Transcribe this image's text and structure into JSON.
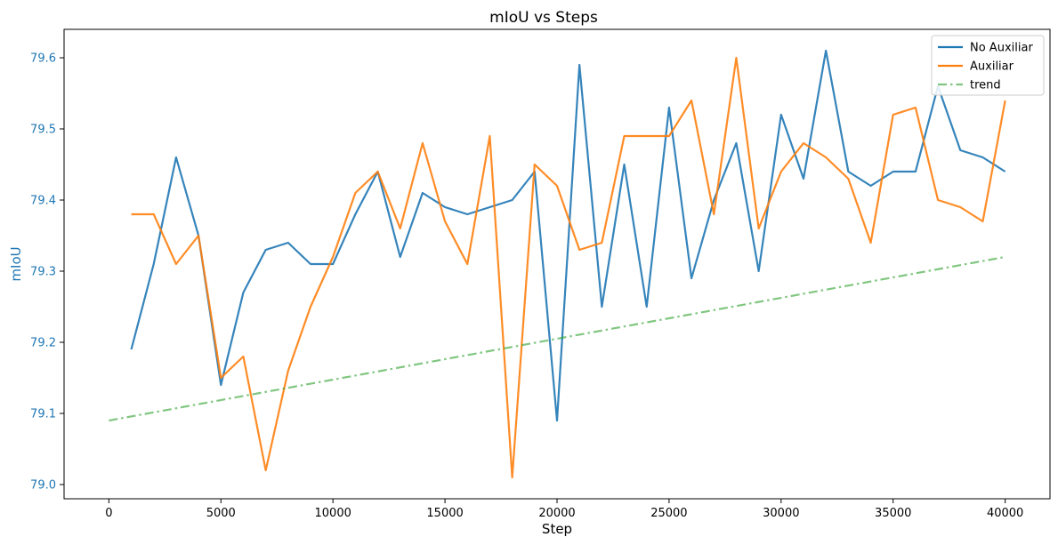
{
  "chart_data": {
    "type": "line",
    "title": "mIoU vs Steps",
    "xlabel": "Step",
    "ylabel": "mIoU",
    "xlim": [
      -2000,
      42000
    ],
    "ylim": [
      78.98,
      79.64
    ],
    "xticks": [
      0,
      5000,
      10000,
      15000,
      20000,
      25000,
      30000,
      35000,
      40000
    ],
    "yticks": [
      79.0,
      79.1,
      79.2,
      79.3,
      79.4,
      79.5,
      79.6
    ],
    "ytick_color": "#1f77b4",
    "ylabel_color": "#1f77b4",
    "grid": false,
    "legend_position": "top-right",
    "x": [
      1000,
      2000,
      3000,
      4000,
      5000,
      6000,
      7000,
      8000,
      9000,
      10000,
      11000,
      12000,
      13000,
      14000,
      15000,
      16000,
      17000,
      18000,
      19000,
      20000,
      21000,
      22000,
      23000,
      24000,
      25000,
      26000,
      27000,
      28000,
      29000,
      30000,
      31000,
      32000,
      33000,
      34000,
      35000,
      36000,
      37000,
      38000,
      39000,
      40000
    ],
    "series": [
      {
        "name": "No Auxiliar",
        "color": "#1f77b4",
        "style": "solid",
        "values": [
          79.19,
          79.31,
          79.46,
          79.35,
          79.14,
          79.27,
          79.33,
          79.34,
          79.31,
          79.31,
          79.38,
          79.44,
          79.32,
          79.41,
          79.39,
          79.38,
          79.39,
          79.4,
          79.44,
          79.09,
          79.59,
          79.25,
          79.45,
          79.25,
          79.53,
          79.29,
          79.4,
          79.48,
          79.3,
          79.52,
          79.43,
          79.61,
          79.44,
          79.42,
          79.44,
          79.44,
          79.56,
          79.47,
          79.46,
          79.44
        ]
      },
      {
        "name": "Auxiliar",
        "color": "#ff7f0e",
        "style": "solid",
        "values": [
          79.38,
          79.38,
          79.31,
          79.35,
          79.15,
          79.18,
          79.02,
          79.16,
          79.25,
          79.32,
          79.41,
          79.44,
          79.36,
          79.48,
          79.37,
          79.31,
          79.49,
          79.01,
          79.45,
          79.42,
          79.33,
          79.34,
          79.49,
          79.49,
          79.49,
          79.54,
          79.38,
          79.6,
          79.36,
          79.44,
          79.48,
          79.46,
          79.43,
          79.34,
          79.52,
          79.53,
          79.4,
          79.39,
          79.37,
          79.54
        ]
      },
      {
        "name": "trend",
        "color": "#2ca02c",
        "style": "dashdot",
        "x": [
          0,
          40000
        ],
        "values": [
          79.09,
          79.32
        ]
      }
    ]
  }
}
